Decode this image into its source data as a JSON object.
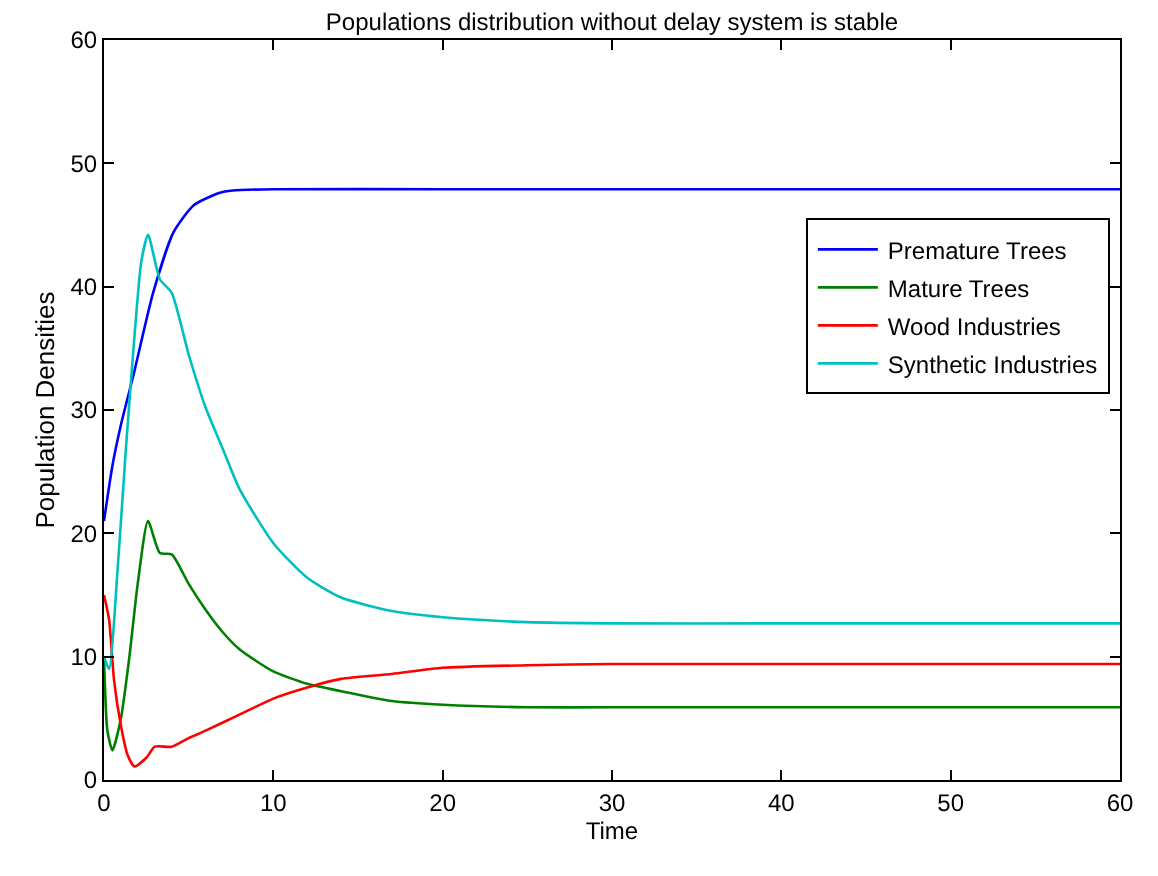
{
  "chart_data": {
    "type": "line",
    "title": "Populations distribution without delay system is stable",
    "xlabel": "Time",
    "ylabel": "Population Densities",
    "xlim": [
      0,
      60
    ],
    "ylim": [
      0,
      60
    ],
    "xticks": [
      0,
      10,
      20,
      30,
      40,
      50,
      60
    ],
    "yticks": [
      0,
      10,
      20,
      30,
      40,
      50,
      60
    ],
    "legend": "right",
    "marker": "none",
    "line_style": "solid",
    "series": [
      {
        "name": "Premature Trees",
        "color": "#0000ff",
        "x": [
          0,
          0.5,
          1,
          1.75,
          2.9,
          4.1,
          5.3,
          6.8,
          7.6,
          10,
          20,
          30,
          40,
          50,
          60
        ],
        "values": [
          21,
          25.5,
          28.8,
          32.9,
          39.5,
          44.4,
          46.6,
          47.6,
          47.8,
          47.9,
          47.9,
          47.9,
          47.9,
          47.9,
          47.9
        ]
      },
      {
        "name": "Mature Trees",
        "color": "#008000",
        "x": [
          0,
          0.2,
          0.5,
          1,
          1.5,
          2,
          2.6,
          3.3,
          4,
          5,
          6,
          7,
          8,
          10,
          12,
          14,
          17,
          20,
          25,
          30,
          40,
          50,
          60
        ],
        "values": [
          10,
          4,
          2.4,
          5,
          10,
          16,
          21,
          18.4,
          18.3,
          15.9,
          13.8,
          12,
          10.6,
          8.8,
          7.8,
          7.2,
          6.4,
          6.1,
          5.9,
          5.9,
          5.9,
          5.9,
          5.9
        ]
      },
      {
        "name": "Wood Industries",
        "color": "#ff0000",
        "x": [
          0,
          0.3,
          0.6,
          1,
          1.4,
          1.8,
          2.5,
          3,
          4,
          5,
          6,
          8,
          10,
          12,
          14,
          17,
          20,
          25,
          30,
          40,
          50,
          60
        ],
        "values": [
          15,
          13,
          8,
          4.4,
          2,
          1.1,
          1.8,
          2.7,
          2.7,
          3.4,
          4,
          5.3,
          6.6,
          7.5,
          8.2,
          8.6,
          9.1,
          9.3,
          9.4,
          9.4,
          9.4,
          9.4
        ]
      },
      {
        "name": "Synthetic Industries",
        "color": "#00bfbf",
        "x": [
          0,
          0.3,
          0.8,
          1.3,
          1.8,
          2.2,
          2.6,
          3.3,
          4,
          5,
          6,
          7,
          8,
          10,
          12,
          14,
          17,
          20,
          25,
          30,
          40,
          50,
          60
        ],
        "values": [
          10,
          9,
          17,
          27,
          36,
          42,
          44.2,
          40.6,
          39.5,
          34.5,
          30.2,
          26.9,
          23.6,
          19.2,
          16.4,
          14.8,
          13.7,
          13.2,
          12.8,
          12.7,
          12.7,
          12.7,
          12.7
        ]
      }
    ]
  }
}
